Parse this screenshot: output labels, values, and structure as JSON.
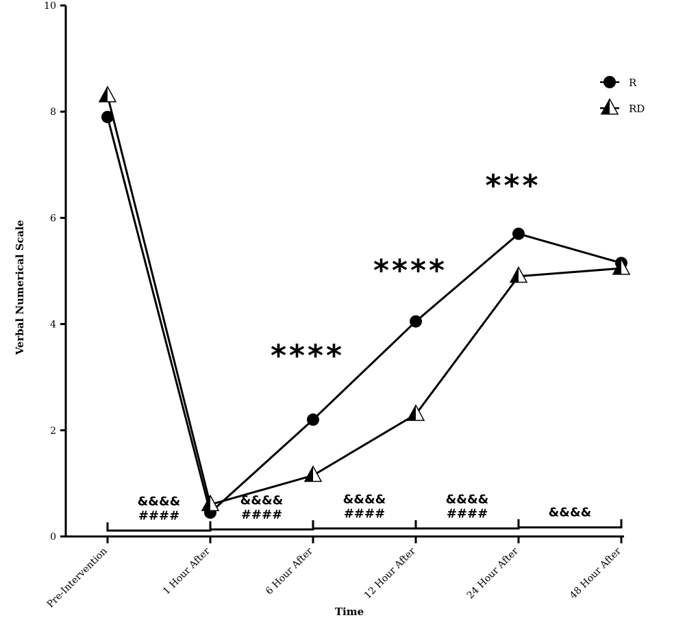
{
  "chart_data": {
    "type": "line",
    "title": "",
    "xlabel": "Time",
    "ylabel": "Verbal Numerical Scale",
    "categories": [
      "Pre-Intervention",
      "1 Hour After",
      "6 Hour After",
      "12 Hour After",
      "24 Hour After",
      "48 Hour After"
    ],
    "ylim": [
      0,
      10
    ],
    "yticks": [
      "0",
      "2",
      "4",
      "6",
      "8",
      "10"
    ],
    "grid": false,
    "legend_position": "top-right",
    "series": [
      {
        "name": "R",
        "marker": "circle",
        "values": [
          7.9,
          0.45,
          2.2,
          4.05,
          5.7,
          5.15
        ]
      },
      {
        "name": "RD",
        "marker": "half-filled-triangle",
        "values": [
          8.3,
          0.6,
          1.15,
          2.3,
          4.9,
          5.05
        ]
      }
    ],
    "annotations": [
      {
        "text": "****",
        "category_index": 2,
        "y": 3.5
      },
      {
        "text": "****",
        "category_index": 3,
        "y": 5.1
      },
      {
        "text": "***",
        "category_index": 4,
        "y": 6.7
      }
    ],
    "interval_brackets": [
      {
        "from": 0,
        "to": 1,
        "y": 0.15,
        "labels": [
          "&&&&",
          "####"
        ]
      },
      {
        "from": 1,
        "to": 2,
        "y": 0.17,
        "labels": [
          "&&&&",
          "####"
        ]
      },
      {
        "from": 2,
        "to": 3,
        "y": 0.19,
        "labels": [
          "&&&&",
          "####"
        ]
      },
      {
        "from": 3,
        "to": 4,
        "y": 0.19,
        "labels": [
          "&&&&",
          "####"
        ]
      },
      {
        "from": 4,
        "to": 5,
        "y": 0.21,
        "labels": [
          "&&&&"
        ]
      }
    ]
  }
}
